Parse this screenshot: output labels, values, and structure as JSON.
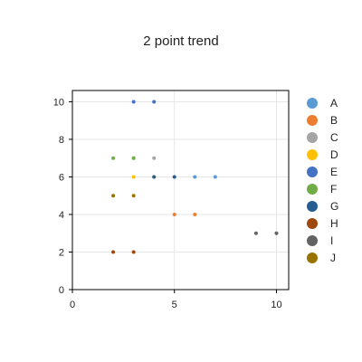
{
  "chart_data": {
    "type": "scatter",
    "title": "2 point trend",
    "xlabel": "",
    "ylabel": "",
    "xlim": [
      0,
      10.6
    ],
    "ylim": [
      0,
      10.6
    ],
    "x_ticks": [
      0,
      5,
      10
    ],
    "y_ticks": [
      0,
      2,
      4,
      6,
      8,
      10
    ],
    "grid": true,
    "legend_position": "right",
    "series": [
      {
        "name": "A",
        "color": "#5b9bd5",
        "points": [
          {
            "x": 6,
            "y": 6
          },
          {
            "x": 7,
            "y": 6
          }
        ]
      },
      {
        "name": "B",
        "color": "#ed7d31",
        "points": [
          {
            "x": 5,
            "y": 4
          },
          {
            "x": 6,
            "y": 4
          }
        ]
      },
      {
        "name": "C",
        "color": "#a5a5a5",
        "points": [
          {
            "x": 3,
            "y": 7
          },
          {
            "x": 4,
            "y": 7
          }
        ]
      },
      {
        "name": "D",
        "color": "#ffc000",
        "points": [
          {
            "x": 3,
            "y": 6
          },
          {
            "x": 4,
            "y": 6
          }
        ]
      },
      {
        "name": "E",
        "color": "#4472c4",
        "points": [
          {
            "x": 3,
            "y": 10
          },
          {
            "x": 4,
            "y": 10
          }
        ]
      },
      {
        "name": "F",
        "color": "#70ad47",
        "points": [
          {
            "x": 2,
            "y": 7
          },
          {
            "x": 3,
            "y": 7
          }
        ]
      },
      {
        "name": "G",
        "color": "#255e91",
        "points": [
          {
            "x": 4,
            "y": 6
          },
          {
            "x": 5,
            "y": 6
          }
        ]
      },
      {
        "name": "H",
        "color": "#9e480e",
        "points": [
          {
            "x": 2,
            "y": 2
          },
          {
            "x": 3,
            "y": 2
          }
        ]
      },
      {
        "name": "I",
        "color": "#636363",
        "points": [
          {
            "x": 9,
            "y": 3
          },
          {
            "x": 10,
            "y": 3
          }
        ]
      },
      {
        "name": "J",
        "color": "#997300",
        "points": [
          {
            "x": 2,
            "y": 5
          },
          {
            "x": 3,
            "y": 5
          }
        ]
      }
    ]
  }
}
